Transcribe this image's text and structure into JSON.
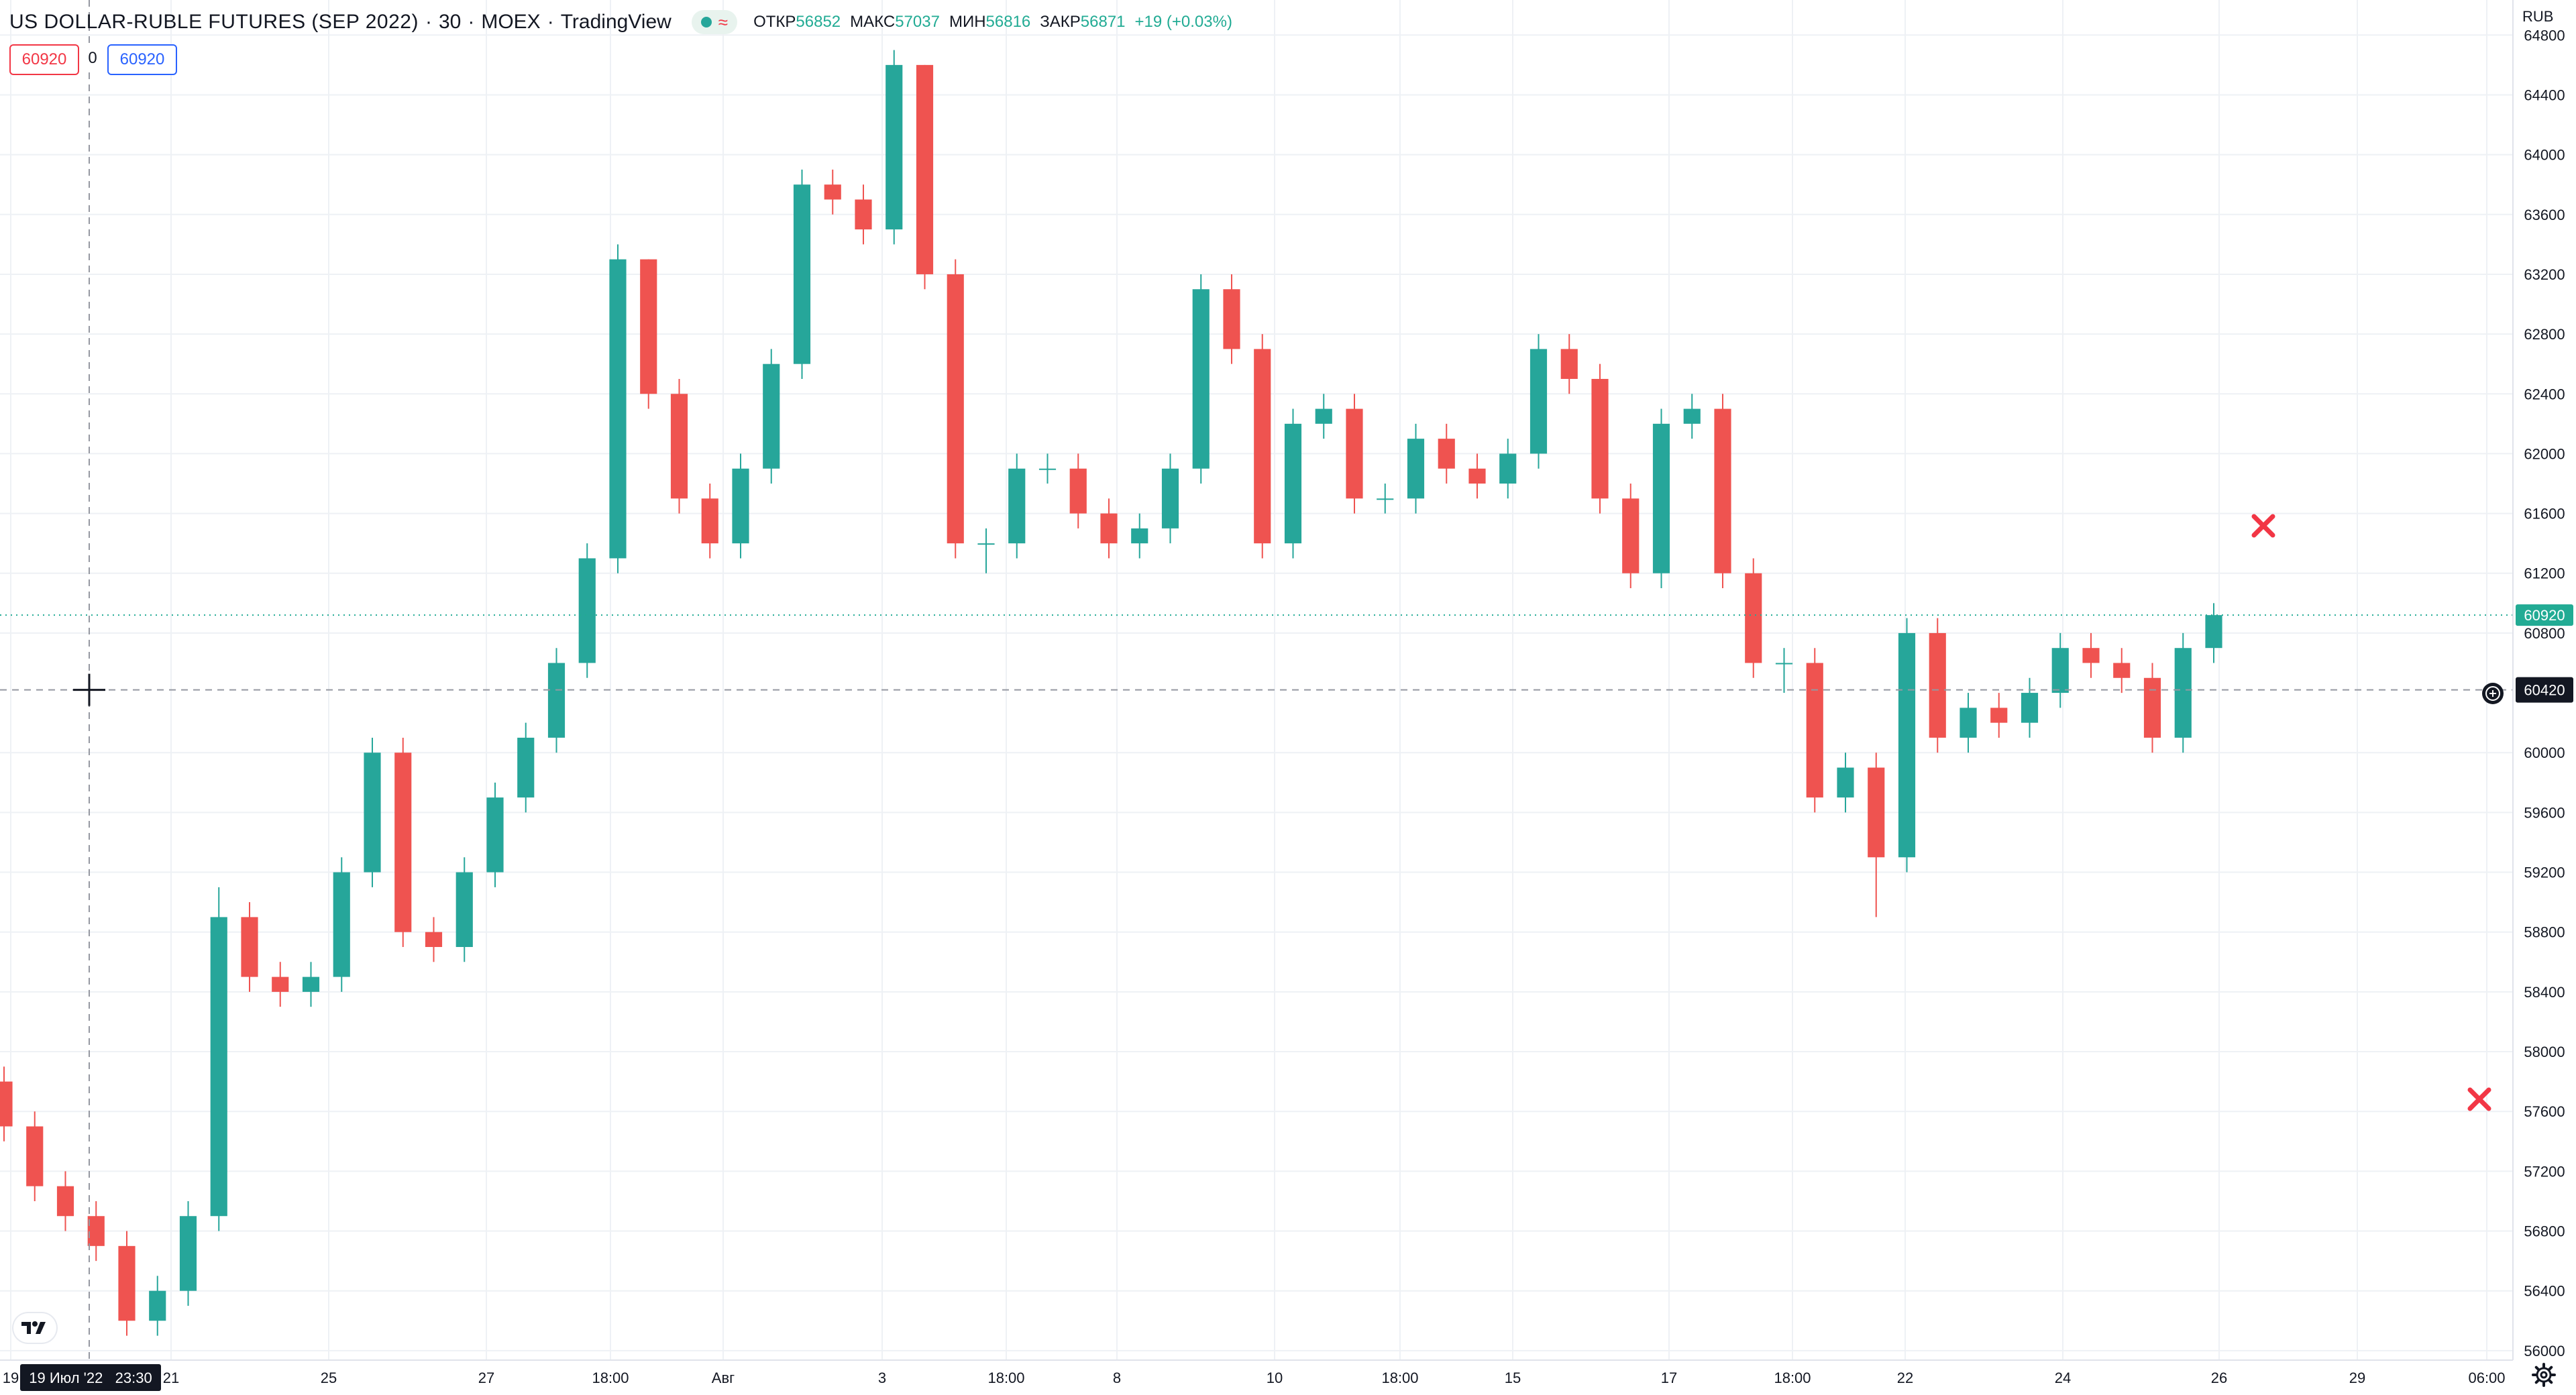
{
  "header": {
    "symbol": "US DOLLAR-RUBLE FUTURES (SEP 2022)",
    "interval": "30",
    "exchange": "MOEX",
    "source": "TradingView",
    "ohlc": {
      "open_label": "ОТКР",
      "open": "56852",
      "high_label": "МАКС",
      "high": "57037",
      "low_label": "МИН",
      "low": "56816",
      "close_label": "ЗАКР",
      "close": "56871",
      "change": "+19 (+0.03%)"
    }
  },
  "order_inputs": {
    "sell": "60920",
    "spread": "0",
    "buy": "60920"
  },
  "price_axis": {
    "currency": "RUB",
    "ticks": [
      "64800",
      "64400",
      "64000",
      "63600",
      "63200",
      "62800",
      "62400",
      "62000",
      "61600",
      "61200",
      "60800",
      "60000",
      "59600",
      "59200",
      "58800",
      "58400",
      "58000",
      "57600",
      "57200",
      "56800",
      "56400",
      "56000"
    ],
    "last_price": "60920",
    "crosshair_price": "60420"
  },
  "time_axis": {
    "ticks": [
      "19",
      "21",
      "25",
      "27",
      "18:00",
      "Авг",
      "3",
      "18:00",
      "8",
      "10",
      "18:00",
      "15",
      "17",
      "18:00",
      "22",
      "24",
      "26",
      "29",
      "06:00"
    ],
    "crosshair_time": "19 Июл '22   23:30"
  },
  "colors": {
    "up": "#26a69a",
    "down": "#ef5350",
    "grid": "#eef1f5",
    "last_price_line": "#22ab94",
    "crosshair": "#9598a1",
    "marker": "#f23645"
  },
  "chart_data": {
    "type": "candlestick",
    "title": "US DOLLAR-RUBLE FUTURES (SEP 2022)",
    "xlabel": "",
    "ylabel": "RUB",
    "ylim": [
      55950,
      64900
    ],
    "grid": true,
    "x": [
      "19",
      "19",
      "19",
      "20",
      "20",
      "20",
      "21",
      "21",
      "21",
      "22",
      "22",
      "25",
      "25",
      "25",
      "26",
      "26",
      "26",
      "27",
      "27",
      "27",
      "28",
      "28",
      "28",
      "29",
      "29",
      "29",
      "Авг",
      "Авг",
      "Авг",
      "2",
      "2",
      "3",
      "3",
      "4",
      "4",
      "4",
      "5",
      "5",
      "8",
      "8",
      "8",
      "9",
      "9",
      "10",
      "10",
      "11",
      "11",
      "11",
      "12",
      "12",
      "15",
      "15",
      "15",
      "16",
      "16",
      "17",
      "17",
      "18",
      "18",
      "18",
      "19",
      "19",
      "22",
      "22",
      "22",
      "23",
      "23",
      "24",
      "24",
      "24",
      "25",
      "25",
      "26"
    ],
    "series": [
      {
        "open": [
          57800,
          57500,
          57100,
          56900,
          56700,
          56200,
          56400,
          56900,
          58900,
          58500,
          58400,
          58500,
          59200,
          60000,
          58800,
          58700,
          59200,
          59700,
          60100,
          60600,
          61300,
          63300,
          62400,
          61700,
          61400,
          61900,
          62600,
          63800,
          63700,
          63500,
          64600,
          63200,
          61400,
          61400,
          61900,
          61900,
          61600,
          61400,
          61500,
          61900,
          63100,
          62700,
          61400,
          62200,
          62300,
          61700,
          61700,
          62100,
          61900,
          61800,
          62000,
          62700,
          62500,
          61700,
          61200,
          62200,
          62300,
          61200,
          60600,
          60600,
          59700,
          59900,
          59300,
          60800,
          60100,
          60300,
          60200,
          60400,
          60700,
          60600,
          60500,
          60100,
          60700
        ],
        "close": [
          57500,
          57100,
          56900,
          56700,
          56200,
          56400,
          56900,
          58900,
          58500,
          58400,
          58500,
          59200,
          60000,
          58800,
          58700,
          59200,
          59700,
          60100,
          60600,
          61300,
          63300,
          62400,
          61700,
          61400,
          61900,
          62600,
          63800,
          63700,
          63500,
          64600,
          63200,
          61400,
          61400,
          61900,
          61900,
          61600,
          61400,
          61500,
          61900,
          63100,
          62700,
          61400,
          62200,
          62300,
          61700,
          61700,
          62100,
          61900,
          61800,
          62000,
          62700,
          62500,
          61700,
          61200,
          62200,
          62300,
          61200,
          60600,
          60600,
          59700,
          59900,
          59300,
          60800,
          60100,
          60300,
          60200,
          60400,
          60700,
          60600,
          60500,
          60100,
          60700,
          60920
        ],
        "high": [
          57900,
          57600,
          57200,
          57000,
          56800,
          56500,
          57000,
          59100,
          59000,
          58600,
          58600,
          59300,
          60100,
          60100,
          58900,
          59300,
          59800,
          60200,
          60700,
          61400,
          63400,
          63300,
          62500,
          61800,
          62000,
          62700,
          63900,
          63900,
          63800,
          64700,
          64600,
          63300,
          61500,
          62000,
          62000,
          62000,
          61700,
          61600,
          62000,
          63200,
          63200,
          62800,
          62300,
          62400,
          62400,
          61800,
          62200,
          62200,
          62000,
          62100,
          62800,
          62800,
          62600,
          61800,
          62300,
          62400,
          62400,
          61300,
          60700,
          60700,
          60000,
          60000,
          60900,
          60900,
          60400,
          60400,
          60500,
          60800,
          60800,
          60700,
          60600,
          60800,
          61000
        ],
        "low": [
          57400,
          57000,
          56800,
          56600,
          56100,
          56100,
          56300,
          56800,
          58400,
          58300,
          58300,
          58400,
          59100,
          58700,
          58600,
          58600,
          59100,
          59600,
          60000,
          60500,
          61200,
          62300,
          61600,
          61300,
          61300,
          61800,
          62500,
          63600,
          63400,
          63400,
          63100,
          61300,
          61200,
          61300,
          61800,
          61500,
          61300,
          61300,
          61400,
          61800,
          62600,
          61300,
          61300,
          62100,
          61600,
          61600,
          61600,
          61800,
          61700,
          61700,
          61900,
          62400,
          61600,
          61100,
          61100,
          62100,
          61100,
          60500,
          60400,
          59600,
          59600,
          58900,
          59200,
          60000,
          60000,
          60100,
          60100,
          60300,
          60500,
          60400,
          60000,
          60000,
          60600
        ]
      }
    ]
  }
}
